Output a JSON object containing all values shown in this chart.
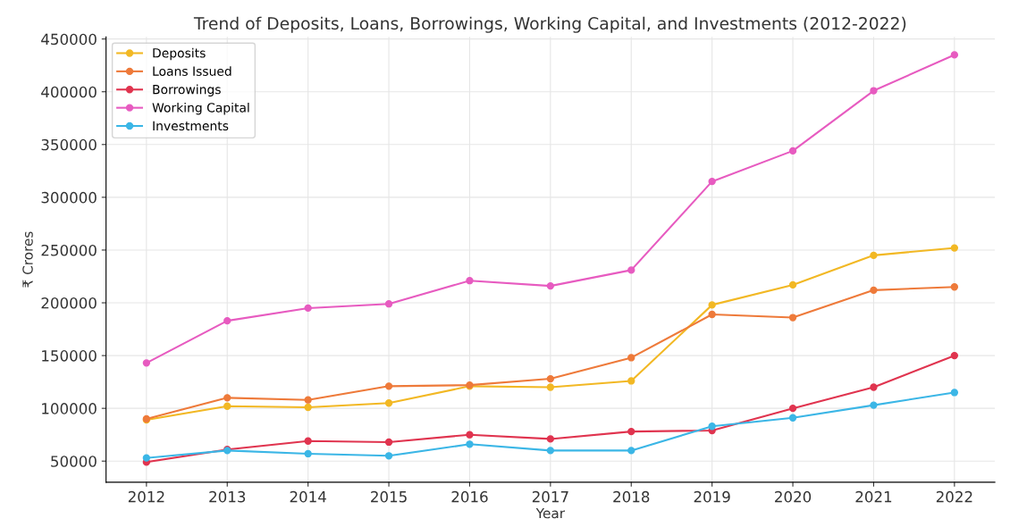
{
  "chart_data": {
    "type": "line",
    "title": "Trend of Deposits, Loans, Borrowings, Working Capital, and Investments (2012-2022)",
    "xlabel": "Year",
    "ylabel": "₹ Crores",
    "x": [
      2012,
      2013,
      2014,
      2015,
      2016,
      2017,
      2018,
      2019,
      2020,
      2021,
      2022
    ],
    "series": [
      {
        "name": "Deposits",
        "color": "#f2b824",
        "values": [
          89000,
          102000,
          101000,
          105000,
          121000,
          120000,
          126000,
          198000,
          217000,
          245000,
          252000
        ]
      },
      {
        "name": "Loans Issued",
        "color": "#ee7a3a",
        "values": [
          90000,
          110000,
          108000,
          121000,
          122000,
          128000,
          148000,
          189000,
          186000,
          212000,
          215000
        ]
      },
      {
        "name": "Borrowings",
        "color": "#e0344f",
        "values": [
          49000,
          61000,
          69000,
          68000,
          75000,
          71000,
          78000,
          79000,
          100000,
          120000,
          150000
        ]
      },
      {
        "name": "Working Capital",
        "color": "#e75bc0",
        "values": [
          143000,
          183000,
          195000,
          199000,
          221000,
          216000,
          231000,
          315000,
          344000,
          401000,
          435000
        ]
      },
      {
        "name": "Investments",
        "color": "#3bb6e6",
        "values": [
          53000,
          60000,
          57000,
          55000,
          66000,
          60000,
          60000,
          83000,
          91000,
          103000,
          115000
        ]
      }
    ],
    "xlim": [
      2011.5,
      2022.5
    ],
    "xticks": [
      2012,
      2013,
      2014,
      2015,
      2016,
      2017,
      2018,
      2019,
      2020,
      2021,
      2022
    ],
    "ylim": [
      30000,
      452000
    ],
    "yticks": [
      50000,
      100000,
      150000,
      200000,
      250000,
      300000,
      350000,
      400000,
      450000
    ],
    "grid": true,
    "legend": "top left",
    "marker": "circle",
    "line_style": "solid"
  }
}
